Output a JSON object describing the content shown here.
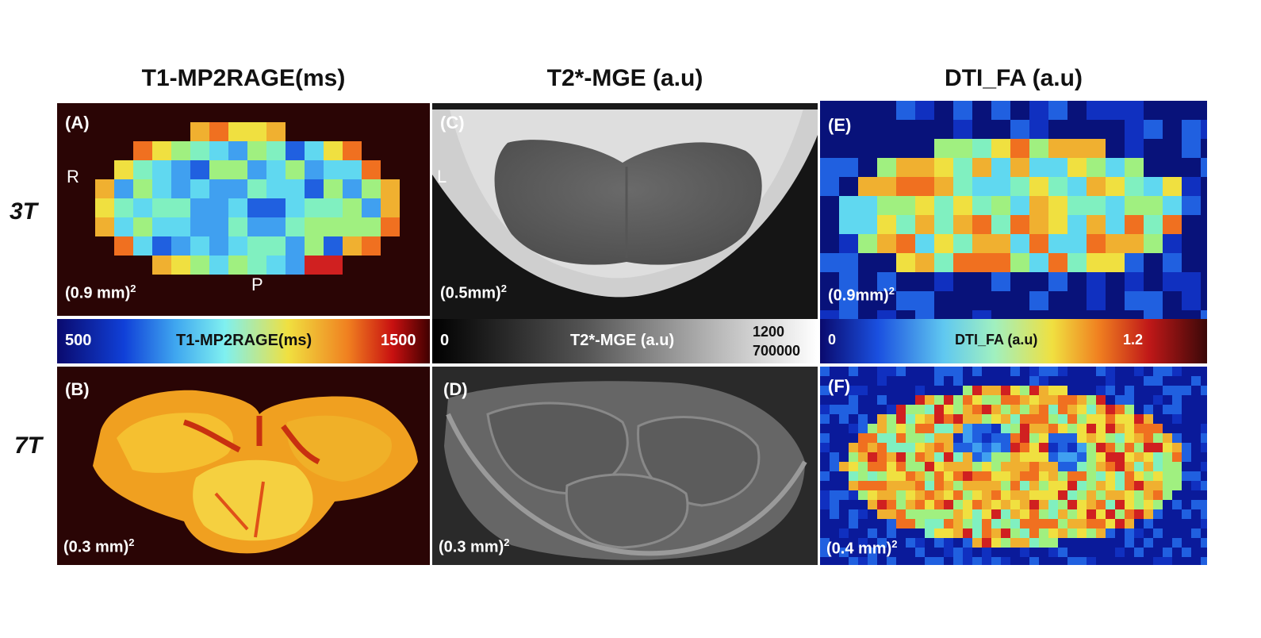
{
  "titles": {
    "t1": "T1-MP2RAGE(ms)",
    "t2": "T2*-MGE (a.u)",
    "fa": "DTI_FA (a.u)"
  },
  "rows": {
    "top": "3T",
    "bottom": "7T"
  },
  "panels": {
    "a": {
      "label": "(A)",
      "res": "(0.9 mm)",
      "dir_r": "R",
      "dir_p": "P"
    },
    "b": {
      "label": "(B)",
      "res": "(0.3 mm)"
    },
    "c": {
      "label": "(C)",
      "res": "(0.5mm)",
      "dir_l": "L"
    },
    "d": {
      "label": "(D)",
      "res": "(0.3 mm)"
    },
    "e": {
      "label": "(E)",
      "res": "(0.9mm)"
    },
    "f": {
      "label": "(F)",
      "res": "(0.4 mm)"
    }
  },
  "sup": "2",
  "colorbars": {
    "t1": {
      "min": "500",
      "label": "T1-MP2RAGE(ms)",
      "max": "1500"
    },
    "t2": {
      "min": "0",
      "label": "T2*-MGE (a.u)",
      "max_top": "1200",
      "max_bottom": "700000"
    },
    "fa": {
      "min": "0",
      "label": "DTI_FA (a.u)",
      "max": "1.2"
    }
  }
}
